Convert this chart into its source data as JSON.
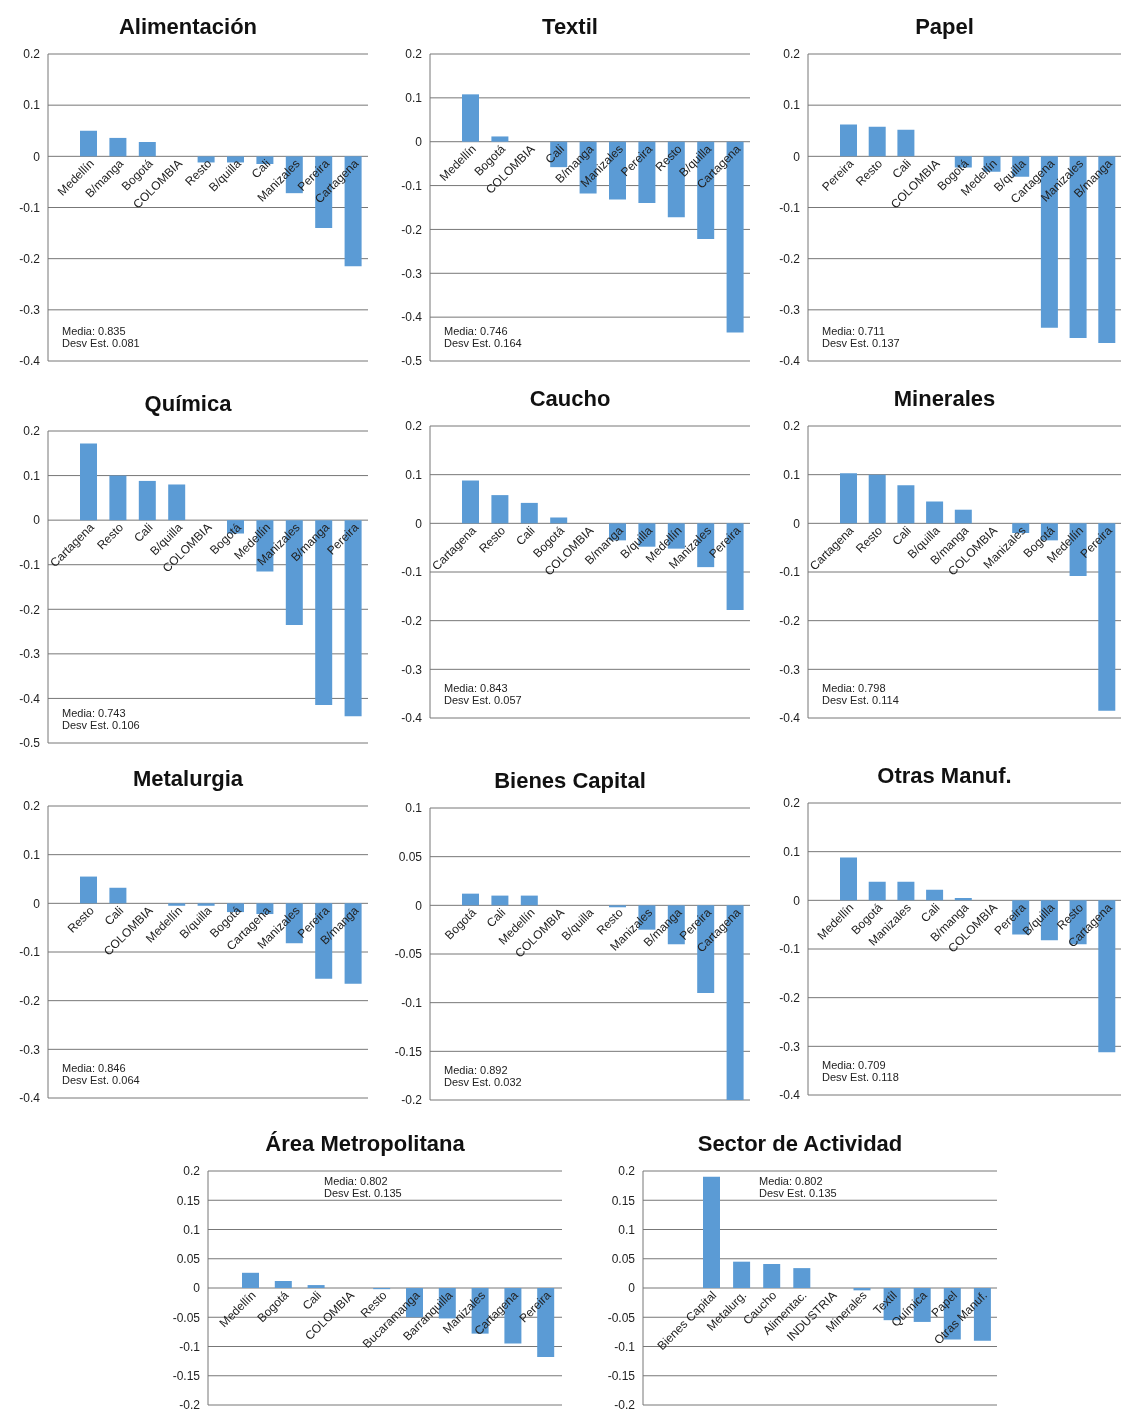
{
  "chart_data": [
    {
      "type": "bar",
      "title": "Alimentación",
      "categories": [
        "Medellín",
        "B/manga",
        "Bogotá",
        "COLOMBIA",
        "Resto",
        "B/quilla",
        "Cali",
        "Manizales",
        "Pereira",
        "Cartagena"
      ],
      "values": [
        0.05,
        0.036,
        0.028,
        0,
        -0.012,
        -0.012,
        -0.015,
        -0.072,
        -0.14,
        -0.215
      ],
      "color": "#5b9bd5",
      "ylim": [
        -0.4,
        0.2
      ],
      "yticks": [
        -0.4,
        -0.3,
        -0.2,
        -0.1,
        0,
        0.1,
        0.2
      ],
      "grid": "y",
      "annotations": [
        "Media: 0.835",
        "Desv Est. 0.081"
      ]
    },
    {
      "type": "bar",
      "title": "Textil",
      "categories": [
        "Medellín",
        "Bogotá",
        "COLOMBIA",
        "Cali",
        "B/manga",
        "Manizales",
        "Pereira",
        "Resto",
        "B/quilla",
        "Cartagena"
      ],
      "values": [
        0.108,
        0.012,
        0,
        -0.058,
        -0.118,
        -0.132,
        -0.14,
        -0.172,
        -0.222,
        -0.435
      ],
      "color": "#5b9bd5",
      "ylim": [
        -0.5,
        0.2
      ],
      "yticks": [
        -0.5,
        -0.4,
        -0.3,
        -0.2,
        -0.1,
        0,
        0.1,
        0.2
      ],
      "grid": "y",
      "annotations": [
        "Media: 0.746",
        "Desv Est. 0.164"
      ]
    },
    {
      "type": "bar",
      "title": "Papel",
      "categories": [
        "Pereira",
        "Resto",
        "Cali",
        "COLOMBIA",
        "Bogotá",
        "Medellín",
        "B/quilla",
        "Cartagena",
        "Manizales",
        "B/manga"
      ],
      "values": [
        0.062,
        0.058,
        0.052,
        0,
        -0.022,
        -0.03,
        -0.04,
        -0.335,
        -0.355,
        -0.365
      ],
      "color": "#5b9bd5",
      "ylim": [
        -0.4,
        0.2
      ],
      "yticks": [
        -0.4,
        -0.3,
        -0.2,
        -0.1,
        0,
        0.1,
        0.2
      ],
      "grid": "y",
      "annotations": [
        "Media: 0.711",
        "Desv Est. 0.137"
      ]
    },
    {
      "type": "bar",
      "title": "Química",
      "categories": [
        "Cartagena",
        "Resto",
        "Cali",
        "B/quilla",
        "COLOMBIA",
        "Bogotá",
        "Medellín",
        "Manizales",
        "B/manga",
        "Pereira"
      ],
      "values": [
        0.172,
        0.1,
        0.088,
        0.08,
        0,
        -0.03,
        -0.115,
        -0.235,
        -0.415,
        -0.44
      ],
      "color": "#5b9bd5",
      "ylim": [
        -0.5,
        0.2
      ],
      "yticks": [
        -0.5,
        -0.4,
        -0.3,
        -0.2,
        -0.1,
        0,
        0.1,
        0.2
      ],
      "grid": "y",
      "annotations": [
        "Media: 0.743",
        "Desv Est. 0.106"
      ]
    },
    {
      "type": "bar",
      "title": "Caucho",
      "categories": [
        "Cartagena",
        "Resto",
        "Cali",
        "Bogotá",
        "COLOMBIA",
        "B/manga",
        "B/quilla",
        "Medellín",
        "Manizales",
        "Pereira"
      ],
      "values": [
        0.088,
        0.058,
        0.042,
        0.012,
        0,
        -0.035,
        -0.048,
        -0.052,
        -0.09,
        -0.178
      ],
      "color": "#5b9bd5",
      "ylim": [
        -0.4,
        0.2
      ],
      "yticks": [
        -0.4,
        -0.3,
        -0.2,
        -0.1,
        0,
        0.1,
        0.2
      ],
      "grid": "y",
      "annotations": [
        "Media: 0.843",
        "Desv Est. 0.057"
      ]
    },
    {
      "type": "bar",
      "title": "Minerales",
      "categories": [
        "Cartagena",
        "Resto",
        "Cali",
        "B/quilla",
        "B/manga",
        "COLOMBIA",
        "Manizales",
        "Bogotá",
        "Medellín",
        "Pereira"
      ],
      "values": [
        0.103,
        0.1,
        0.078,
        0.045,
        0.028,
        0,
        -0.02,
        -0.035,
        -0.108,
        -0.385
      ],
      "color": "#5b9bd5",
      "ylim": [
        -0.4,
        0.2
      ],
      "yticks": [
        -0.4,
        -0.3,
        -0.2,
        -0.1,
        0,
        0.1,
        0.2
      ],
      "grid": "y",
      "annotations": [
        "Media: 0.798",
        "Desv Est. 0.114"
      ]
    },
    {
      "type": "bar",
      "title": "Metalurgia",
      "categories": [
        "Resto",
        "Cali",
        "COLOMBIA",
        "Medellín",
        "B/quilla",
        "Bogotá",
        "Cartagena",
        "Manizales",
        "Pereira",
        "B/manga"
      ],
      "values": [
        0.055,
        0.032,
        0,
        -0.005,
        -0.005,
        -0.018,
        -0.022,
        -0.082,
        -0.155,
        -0.165
      ],
      "color": "#5b9bd5",
      "ylim": [
        -0.4,
        0.2
      ],
      "yticks": [
        -0.4,
        -0.3,
        -0.2,
        -0.1,
        0,
        0.1,
        0.2
      ],
      "grid": "y",
      "annotations": [
        "Media: 0.846",
        "Desv Est. 0.064"
      ]
    },
    {
      "type": "bar",
      "title": "Bienes Capital",
      "categories": [
        "Bogotá",
        "Cali",
        "Medellín",
        "COLOMBIA",
        "B/quilla",
        "Resto",
        "Manizales",
        "B/manga",
        "Pereira",
        "Cartagena"
      ],
      "values": [
        0.012,
        0.01,
        0.01,
        0,
        0,
        -0.002,
        -0.025,
        -0.04,
        -0.09,
        -0.2
      ],
      "color": "#5b9bd5",
      "ylim": [
        -0.2,
        0.1
      ],
      "yticks": [
        -0.2,
        -0.15,
        -0.1,
        -0.05,
        0,
        0.05,
        0.1
      ],
      "grid": "y",
      "annotations": [
        "Media: 0.892",
        "Desv Est. 0.032"
      ]
    },
    {
      "type": "bar",
      "title": "Otras Manuf.",
      "categories": [
        "Medellín",
        "Bogotá",
        "Manizales",
        "Cali",
        "B/manga",
        "COLOMBIA",
        "Pereira",
        "B/quilla",
        "Resto",
        "Cartagena"
      ],
      "values": [
        0.088,
        0.038,
        0.038,
        0.022,
        0.005,
        0,
        -0.07,
        -0.082,
        -0.09,
        -0.312
      ],
      "color": "#5b9bd5",
      "ylim": [
        -0.4,
        0.2
      ],
      "yticks": [
        -0.4,
        -0.3,
        -0.2,
        -0.1,
        0,
        0.1,
        0.2
      ],
      "grid": "y",
      "annotations": [
        "Media: 0.709",
        "Desv Est. 0.118"
      ]
    },
    {
      "type": "bar",
      "title": "Área Metropolitana",
      "categories": [
        "Medellín",
        "Bogotá",
        "Cali",
        "COLOMBIA",
        "Resto",
        "Bucaramanga",
        "Barranquilla",
        "Manizales",
        "Cartagena",
        "Pereira"
      ],
      "values": [
        0.026,
        0.012,
        0.005,
        0,
        -0.002,
        -0.05,
        -0.052,
        -0.078,
        -0.095,
        -0.118
      ],
      "color": "#5b9bd5",
      "ylim": [
        -0.2,
        0.2
      ],
      "yticks": [
        -0.2,
        -0.15,
        -0.1,
        -0.05,
        0,
        0.05,
        0.1,
        0.15,
        0.2
      ],
      "grid": "y",
      "annotations": [
        "Media: 0.802",
        "Desv Est. 0.135"
      ]
    },
    {
      "type": "bar",
      "title": "Sector de Actividad",
      "categories": [
        "Bienes Capital",
        "Metalurg.",
        "Caucho",
        "Alimentac.",
        "INDUSTRIA",
        "Minerales",
        "Textil",
        "Química",
        "Papel",
        "Otras Manuf."
      ],
      "values": [
        0.19,
        0.045,
        0.041,
        0.034,
        0,
        -0.004,
        -0.055,
        -0.058,
        -0.088,
        -0.09
      ],
      "color": "#5b9bd5",
      "ylim": [
        -0.2,
        0.2
      ],
      "yticks": [
        -0.2,
        -0.15,
        -0.1,
        -0.05,
        0,
        0.05,
        0.1,
        0.15,
        0.2
      ],
      "grid": "y",
      "annotations": [
        "Media: 0.802",
        "Desv Est. 0.135"
      ]
    }
  ]
}
